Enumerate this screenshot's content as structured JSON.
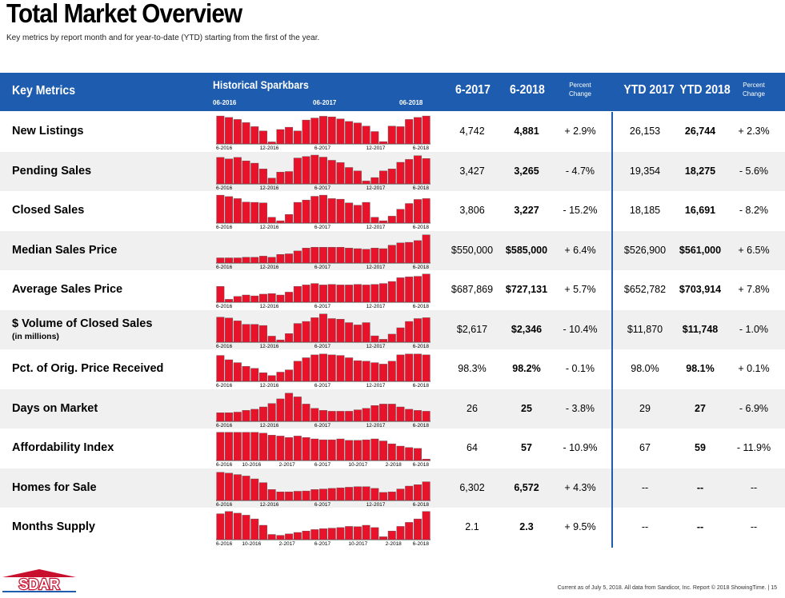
{
  "page": {
    "title": "Total Market Overview",
    "subtitle": "Key metrics by report month and for year-to-date (YTD) starting from the first of the year.",
    "footer": "Current as of July 5, 2018. All data from Sandicor, Inc. Report © 2018 ShowingTime.  |  15",
    "logo_text": "SDAR"
  },
  "header": {
    "key_metrics": "Key Metrics",
    "sparkbars": "Historical Sparkbars",
    "spark_dates": [
      "06-2016",
      "06-2017",
      "06-2018"
    ],
    "col_2017": "6-2017",
    "col_2018": "6-2018",
    "pct_change": "Percent\nChange",
    "ytd_2017": "YTD 2017",
    "ytd_2018": "YTD 2018",
    "ytd_pct_change": "Percent\nChange"
  },
  "colors": {
    "header_blue": "#1d5cae",
    "bar_red": "#e8132b",
    "shade": "#f0f0f0"
  },
  "rows": [
    {
      "label": "New Listings",
      "sublabel": "",
      "v2017": "4,742",
      "v2018": "4,881",
      "pct": "+ 2.9%",
      "ytd2017": "26,153",
      "ytd2018": "26,744",
      "ytdpct": "+ 2.3%",
      "axis": [
        "6-2016",
        "12-2016",
        "6-2017",
        "12-2017",
        "6-2018"
      ],
      "bars": [
        0.97,
        0.92,
        0.85,
        0.74,
        0.6,
        0.45,
        0.07,
        0.5,
        0.58,
        0.45,
        0.83,
        0.9,
        0.96,
        0.94,
        0.87,
        0.78,
        0.73,
        0.62,
        0.43,
        0.08,
        0.62,
        0.6,
        0.85,
        0.92,
        0.97
      ]
    },
    {
      "label": "Pending Sales",
      "sublabel": "",
      "v2017": "3,427",
      "v2018": "3,265",
      "pct": "- 4.7%",
      "ytd2017": "19,354",
      "ytd2018": "18,275",
      "ytdpct": "- 5.6%",
      "axis": [
        "6-2016",
        "12-2016",
        "6-2017",
        "12-2017",
        "6-2018"
      ],
      "bars": [
        0.92,
        0.87,
        0.92,
        0.8,
        0.72,
        0.52,
        0.2,
        0.41,
        0.43,
        0.9,
        0.95,
        1.0,
        0.93,
        0.82,
        0.74,
        0.57,
        0.45,
        0.1,
        0.22,
        0.45,
        0.52,
        0.75,
        0.85,
        0.98,
        0.88
      ]
    },
    {
      "label": "Closed Sales",
      "sublabel": "",
      "v2017": "3,806",
      "v2018": "3,227",
      "pct": "- 15.2%",
      "ytd2017": "18,185",
      "ytd2018": "16,691",
      "ytdpct": "- 8.2%",
      "axis": [
        "6-2016",
        "12-2016",
        "6-2017",
        "12-2017",
        "6-2018"
      ],
      "bars": [
        0.97,
        0.92,
        0.85,
        0.73,
        0.72,
        0.7,
        0.2,
        0.08,
        0.3,
        0.72,
        0.8,
        0.93,
        0.97,
        0.85,
        0.83,
        0.7,
        0.62,
        0.72,
        0.2,
        0.08,
        0.24,
        0.48,
        0.68,
        0.82,
        0.85
      ]
    },
    {
      "label": "Median Sales Price",
      "sublabel": "",
      "v2017": "$550,000",
      "v2018": "$585,000",
      "pct": "+ 6.4%",
      "ytd2017": "$526,900",
      "ytd2018": "$561,000",
      "ytdpct": "+ 6.5%",
      "axis": [
        "6-2016",
        "12-2016",
        "6-2017",
        "12-2017",
        "6-2018"
      ],
      "bars": [
        0.18,
        0.18,
        0.18,
        0.2,
        0.2,
        0.24,
        0.2,
        0.3,
        0.32,
        0.42,
        0.52,
        0.55,
        0.55,
        0.55,
        0.55,
        0.52,
        0.5,
        0.48,
        0.52,
        0.5,
        0.62,
        0.7,
        0.72,
        0.78,
        0.98
      ]
    },
    {
      "label": "Average Sales Price",
      "sublabel": "",
      "v2017": "$687,869",
      "v2018": "$727,131",
      "pct": "+ 5.7%",
      "ytd2017": "$652,782",
      "ytd2018": "$703,914",
      "ytdpct": "+ 7.8%",
      "axis": [
        "6-2016",
        "12-2016",
        "6-2017",
        "12-2017",
        "6-2018"
      ],
      "bars": [
        0.55,
        0.1,
        0.2,
        0.25,
        0.22,
        0.28,
        0.3,
        0.25,
        0.35,
        0.55,
        0.6,
        0.65,
        0.6,
        0.62,
        0.6,
        0.6,
        0.62,
        0.6,
        0.62,
        0.65,
        0.72,
        0.85,
        0.88,
        0.9,
        0.98
      ]
    },
    {
      "label": "$ Volume of Closed Sales",
      "sublabel": "(in millions)",
      "v2017": "$2,617",
      "v2018": "$2,346",
      "pct": "- 10.4%",
      "ytd2017": "$11,870",
      "ytd2018": "$11,748",
      "ytdpct": "- 1.0%",
      "axis": [
        "6-2016",
        "12-2016",
        "6-2017",
        "12-2017",
        "6-2018"
      ],
      "bars": [
        0.87,
        0.84,
        0.74,
        0.62,
        0.62,
        0.58,
        0.21,
        0.08,
        0.3,
        0.65,
        0.72,
        0.85,
        0.98,
        0.82,
        0.8,
        0.68,
        0.6,
        0.68,
        0.22,
        0.1,
        0.28,
        0.5,
        0.72,
        0.82,
        0.85
      ]
    },
    {
      "label": "Pct. of Orig. Price Received",
      "sublabel": "",
      "v2017": "98.3%",
      "v2018": "98.2%",
      "pct": "- 0.1%",
      "ytd2017": "98.0%",
      "ytd2018": "98.1%",
      "ytdpct": "+ 0.1%",
      "axis": [
        "6-2016",
        "12-2016",
        "6-2017",
        "12-2017",
        "6-2018"
      ],
      "bars": [
        0.9,
        0.75,
        0.65,
        0.52,
        0.45,
        0.3,
        0.2,
        0.32,
        0.4,
        0.7,
        0.82,
        0.92,
        0.95,
        0.92,
        0.9,
        0.82,
        0.72,
        0.7,
        0.65,
        0.6,
        0.7,
        0.92,
        0.95,
        0.95,
        0.92
      ]
    },
    {
      "label": "Days on Market",
      "sublabel": "",
      "v2017": "26",
      "v2018": "25",
      "pct": "- 3.8%",
      "ytd2017": "29",
      "ytd2018": "27",
      "ytdpct": "- 6.9%",
      "axis": [
        "6-2016",
        "12-2016",
        "6-2017",
        "12-2017",
        "6-2018"
      ],
      "bars": [
        0.3,
        0.3,
        0.32,
        0.38,
        0.42,
        0.5,
        0.62,
        0.78,
        0.98,
        0.85,
        0.6,
        0.45,
        0.38,
        0.35,
        0.35,
        0.35,
        0.4,
        0.45,
        0.55,
        0.6,
        0.6,
        0.5,
        0.42,
        0.38,
        0.35
      ]
    },
    {
      "label": "Affordability Index",
      "sublabel": "",
      "v2017": "64",
      "v2018": "57",
      "pct": "- 10.9%",
      "ytd2017": "67",
      "ytd2018": "59",
      "ytdpct": "- 11.9%",
      "axis": [
        "6-2016",
        "10-2016",
        "2-2017",
        "6-2017",
        "10-2017",
        "2-2018",
        "6-2018"
      ],
      "bars": [
        0.98,
        0.98,
        0.98,
        0.98,
        0.98,
        0.95,
        0.88,
        0.85,
        0.8,
        0.85,
        0.8,
        0.75,
        0.72,
        0.72,
        0.75,
        0.7,
        0.7,
        0.72,
        0.75,
        0.68,
        0.58,
        0.5,
        0.45,
        0.42,
        0.05
      ]
    },
    {
      "label": "Homes for Sale",
      "sublabel": "",
      "v2017": "6,302",
      "v2018": "6,572",
      "pct": "+ 4.3%",
      "ytd2017": "--",
      "ytd2018": "--",
      "ytdpct": "--",
      "axis": [
        "6-2016",
        "12-2016",
        "6-2017",
        "12-2017",
        "6-2018"
      ],
      "bars": [
        0.98,
        0.95,
        0.9,
        0.85,
        0.75,
        0.62,
        0.38,
        0.3,
        0.3,
        0.32,
        0.33,
        0.38,
        0.4,
        0.42,
        0.44,
        0.46,
        0.48,
        0.48,
        0.42,
        0.28,
        0.3,
        0.4,
        0.5,
        0.55,
        0.65
      ]
    },
    {
      "label": "Months Supply",
      "sublabel": "",
      "v2017": "2.1",
      "v2018": "2.3",
      "pct": "+ 9.5%",
      "ytd2017": "--",
      "ytd2018": "--",
      "ytdpct": "--",
      "axis": [
        "6-2016",
        "10-2016",
        "2-2017",
        "6-2017",
        "10-2017",
        "2-2018",
        "6-2018"
      ],
      "bars": [
        0.9,
        0.98,
        0.92,
        0.85,
        0.72,
        0.5,
        0.18,
        0.15,
        0.2,
        0.25,
        0.3,
        0.35,
        0.38,
        0.4,
        0.42,
        0.46,
        0.45,
        0.5,
        0.42,
        0.1,
        0.3,
        0.46,
        0.6,
        0.72,
        0.98
      ]
    }
  ]
}
